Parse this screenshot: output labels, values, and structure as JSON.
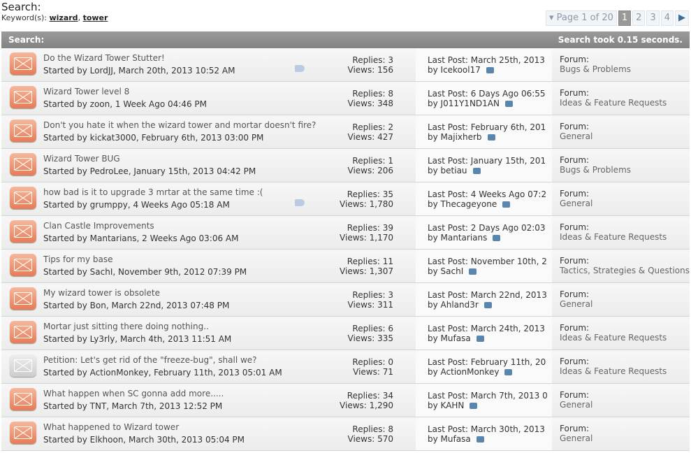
{
  "header": {
    "title": "Search:",
    "keyword_label": "Keyword(s): ",
    "keywords": [
      "wizard",
      "tower"
    ]
  },
  "pager": {
    "label": "Page 1 of 20",
    "pages": [
      "1",
      "2",
      "3",
      "4"
    ],
    "current": "1"
  },
  "bar": {
    "left": "Search:",
    "right": "Search took 0.15 seconds."
  },
  "rows": [
    {
      "title": "Do the Wizard Tower Stutter!",
      "started": "Started by LordJJ, March 20th, 2013 10:52 AM",
      "replies": "Replies: 3",
      "views": "Views: 156",
      "last": "Last Post: March 25th, 2013",
      "by": "by Icekool17",
      "forum": "Bugs & Problems",
      "tag": true
    },
    {
      "title": "Wizard Tower level 8",
      "started": "Started by zoon, 1 Week Ago 04:46 PM",
      "replies": "Replies: 8",
      "views": "Views: 348",
      "last": "Last Post: 6 Days Ago 06:55",
      "by": "by J011Y1ND1AN",
      "forum": "Ideas & Feature Requests"
    },
    {
      "title": "Don't you hate it when the wizard tower and mortar doesn't fire?",
      "started": "Started by kickat3000, February 6th, 2013 03:00 PM",
      "replies": "Replies: 2",
      "views": "Views: 427",
      "last": "Last Post: February 6th, 201",
      "by": "by Majixherb",
      "forum": "General"
    },
    {
      "title": "Wizard Tower BUG",
      "started": "Started by PedroLee, January 15th, 2013 04:42 PM",
      "replies": "Replies: 1",
      "views": "Views: 206",
      "last": "Last Post: January 15th, 201",
      "by": "by betiau",
      "forum": "Bugs & Problems"
    },
    {
      "title": "how bad is it to upgrade 3 mrtar at the same time :(",
      "started": "Started by grumppy, 4 Weeks Ago 05:18 AM",
      "replies": "Replies: 35",
      "views": "Views: 1,780",
      "last": "Last Post: 4 Weeks Ago 07:2",
      "by": "by Thecageyone",
      "forum": "General",
      "tag": true
    },
    {
      "title": "Clan Castle Improvements",
      "started": "Started by Mantarians, 2 Weeks Ago 03:06 AM",
      "replies": "Replies: 39",
      "views": "Views: 1,170",
      "last": "Last Post: 2 Days Ago 02:03",
      "by": "by Mantarians",
      "forum": "Ideas & Feature Requests"
    },
    {
      "title": "Tips for my base",
      "started": "Started by SachI, November 9th, 2012 07:39 PM",
      "replies": "Replies: 11",
      "views": "Views: 1,307",
      "last": "Last Post: November 10th, 2",
      "by": "by SachI",
      "forum": "Tactics, Strategies & Questions"
    },
    {
      "title": "My wizard tower is obsolete",
      "started": "Started by Bon, March 22nd, 2013 07:48 PM",
      "replies": "Replies: 3",
      "views": "Views: 311",
      "last": "Last Post: March 22nd, 2013",
      "by": "by Ahland3r",
      "forum": "General"
    },
    {
      "title": "Mortar just sitting there doing nothing..",
      "started": "Started by Ly3rly, March 4th, 2013 11:51 AM",
      "replies": "Replies: 6",
      "views": "Views: 335",
      "last": "Last Post: March 24th, 2013",
      "by": "by Mufasa",
      "forum": "Ideas & Feature Requests"
    },
    {
      "title": "Petition: Let's get rid of the \"freeze-bug\", shall we?",
      "started": "Started by ActionMonkey, February 11th, 2013 05:01 AM",
      "replies": "Replies: 0",
      "views": "Views: 71",
      "last": "Last Post: February 11th, 20",
      "by": "by ActionMonkey",
      "forum": "Ideas & Feature Requests",
      "grey": true
    },
    {
      "title": "What happen when SC gonna add more.....",
      "started": "Started by TNT, March 7th, 2013 12:52 PM",
      "replies": "Replies: 34",
      "views": "Views: 1,290",
      "last": "Last Post: March 7th, 2013 0",
      "by": "by KAHN",
      "forum": "General"
    },
    {
      "title": "What happened to Wizard tower",
      "started": "Started by Elkhoon, March 30th, 2013 05:04 PM",
      "replies": "Replies: 8",
      "views": "Views: 570",
      "last": "Last Post: March 30th, 2013",
      "by": "by Mufasa",
      "forum": "General"
    }
  ],
  "forum_label": "Forum:"
}
